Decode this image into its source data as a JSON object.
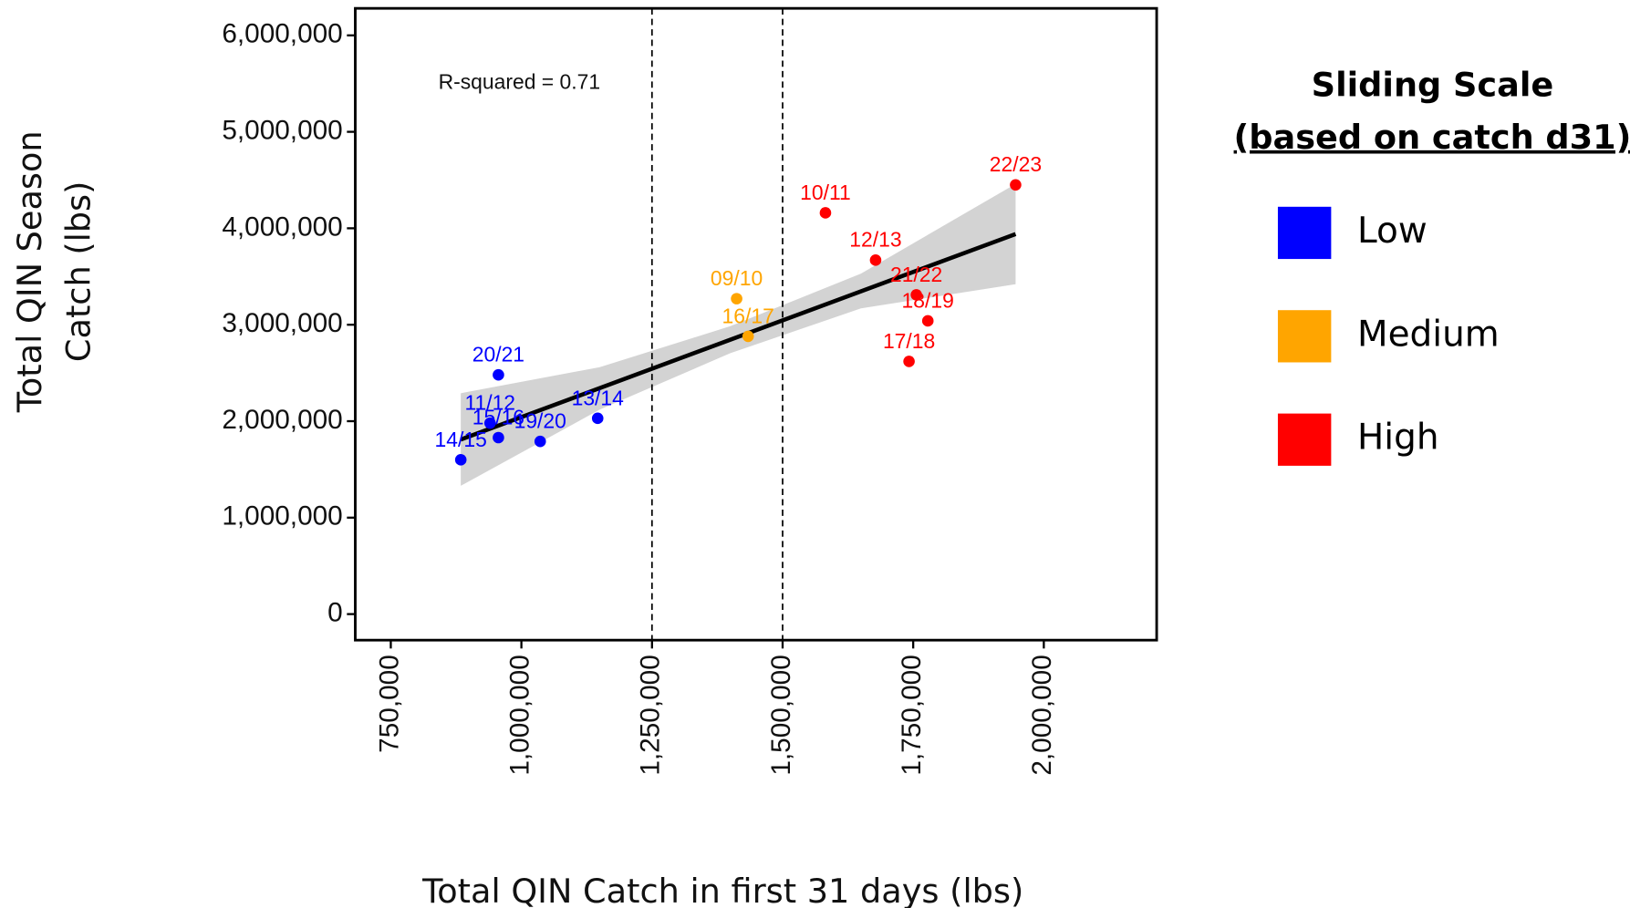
{
  "chart_data": {
    "type": "scatter",
    "x_label": "Total QIN Catch in first 31 days (lbs)",
    "y_label": [
      "Total QIN Season",
      "Catch (lbs)"
    ],
    "annotation": "R-squared = 0.71",
    "legend_title": [
      "Sliding Scale",
      "(based on catch d31)"
    ],
    "xlim": [
      682000,
      2216000
    ],
    "ylim": [
      -270000,
      6280000
    ],
    "xticks": [
      {
        "value": 750000,
        "label": "750,000"
      },
      {
        "value": 1000000,
        "label": "1,000,000"
      },
      {
        "value": 1250000,
        "label": "1,250,000"
      },
      {
        "value": 1500000,
        "label": "1,500,000"
      },
      {
        "value": 1750000,
        "label": "1,750,000"
      },
      {
        "value": 2000000,
        "label": "2,000,000"
      }
    ],
    "yticks": [
      0,
      {
        "value": 1000000,
        "label": "1,000,000"
      },
      {
        "value": 2000000,
        "label": "2,000,000"
      },
      {
        "value": 3000000,
        "label": "3,000,000"
      },
      {
        "value": 4000000,
        "label": "4,000,000"
      },
      {
        "value": 5000000,
        "label": "5,000,000"
      },
      {
        "value": 6000000,
        "label": "6,000,000"
      }
    ],
    "vlines": [
      1250000,
      1500000
    ],
    "fit": {
      "x": [
        884000,
        1946000
      ],
      "y": [
        1810000,
        3940000
      ]
    },
    "band": {
      "x": [
        884000,
        1150000,
        1400000,
        1650000,
        1946000
      ],
      "upper": [
        2290000,
        2560000,
        2985000,
        3530000,
        4460000
      ],
      "lower": [
        1330000,
        2120000,
        2705000,
        3170000,
        3420000
      ]
    },
    "series": [
      {
        "name": "Low",
        "color": "#0000ff",
        "labels": [
          "14/15",
          "11/12",
          "15/16",
          "19/20",
          "20/21",
          "13/14"
        ],
        "x": [
          884000,
          940000,
          956000,
          1036000,
          956000,
          1146000
        ],
        "values": [
          1600000,
          1980000,
          1830000,
          1790000,
          2480000,
          2030000
        ]
      },
      {
        "name": "Medium",
        "color": "#ffa500",
        "labels": [
          "09/10",
          "16/17"
        ],
        "x": [
          1412000,
          1434000
        ],
        "values": [
          3270000,
          2880000
        ]
      },
      {
        "name": "High",
        "color": "#ff0000",
        "labels": [
          "10/11",
          "12/13",
          "21/22",
          "18/19",
          "17/18",
          "22/23"
        ],
        "x": [
          1582000,
          1678000,
          1756000,
          1778000,
          1742000,
          1946000
        ],
        "values": [
          4160000,
          3670000,
          3310000,
          3040000,
          2620000,
          4450000
        ]
      }
    ]
  }
}
